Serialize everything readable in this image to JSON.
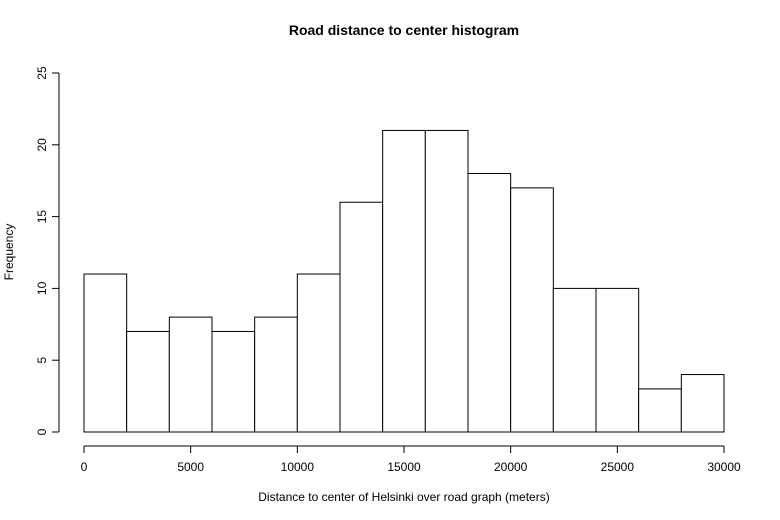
{
  "chart_data": {
    "type": "bar",
    "title": "Road distance to center histogram",
    "xlabel": "Distance to center of Helsinki over road graph (meters)",
    "ylabel": "Frequency",
    "bin_edges": [
      0,
      2000,
      4000,
      6000,
      8000,
      10000,
      12000,
      14000,
      16000,
      18000,
      20000,
      22000,
      24000,
      26000,
      28000,
      30000
    ],
    "values": [
      11,
      7,
      8,
      7,
      8,
      11,
      16,
      21,
      21,
      18,
      17,
      10,
      10,
      3,
      4
    ],
    "xlim": [
      0,
      30000
    ],
    "ylim": [
      0,
      25
    ],
    "x_ticks": [
      0,
      5000,
      10000,
      15000,
      20000,
      25000,
      30000
    ],
    "x_tick_labels": [
      "0",
      "5000",
      "10000",
      "15000",
      "20000",
      "25000",
      "30000"
    ],
    "y_ticks": [
      0,
      5,
      10,
      15,
      20,
      25
    ],
    "y_tick_labels": [
      "0",
      "5",
      "10",
      "15",
      "20",
      "25"
    ],
    "grid": false,
    "fill_color": "#ffffff",
    "edge_color": "#000000"
  }
}
